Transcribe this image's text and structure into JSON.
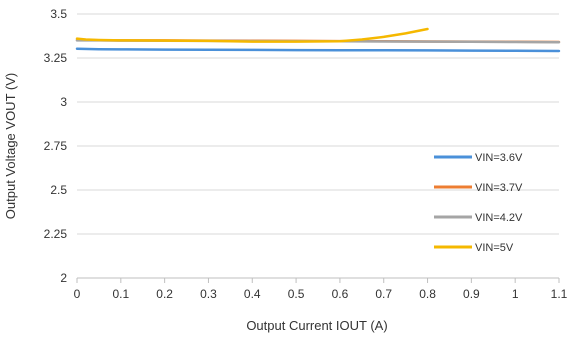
{
  "chart_data": {
    "type": "line",
    "title": "",
    "xlabel": "Output Current IOUT (A)",
    "ylabel": "Output Voltage VOUT (V)",
    "xlim": [
      0,
      1.1
    ],
    "ylim": [
      2,
      3.5
    ],
    "xticks": [
      0,
      0.1,
      0.2,
      0.3,
      0.4,
      0.5,
      0.6,
      0.7,
      0.8,
      0.9,
      1,
      1.1
    ],
    "xtick_labels": [
      "0",
      "0.1",
      "0.2",
      "0.3",
      "0.4",
      "0.5",
      "0.6",
      "0.7",
      "0.8",
      "0.9",
      "1",
      "1.1"
    ],
    "yticks": [
      2,
      2.25,
      2.5,
      2.75,
      3,
      3.25,
      3.5
    ],
    "ytick_labels": [
      "2",
      "2.25",
      "2.5",
      "2.75",
      "3",
      "3.25",
      "3.5"
    ],
    "grid": "horizontal",
    "legend_position": "bottom-right",
    "series": [
      {
        "name": "VIN=3.6V",
        "color": "#4a90d9",
        "x": [
          0,
          0.05,
          0.1,
          0.2,
          0.3,
          0.4,
          0.5,
          0.6,
          0.7,
          0.8,
          0.9,
          1.0,
          1.1
        ],
        "y": [
          3.303,
          3.3,
          3.299,
          3.298,
          3.297,
          3.296,
          3.295,
          3.294,
          3.294,
          3.293,
          3.292,
          3.291,
          3.29
        ]
      },
      {
        "name": "VIN=3.7V",
        "color": "#ed7d31",
        "x": [
          0,
          0.05,
          0.1,
          0.2,
          0.3,
          0.4,
          0.5,
          0.6,
          0.7,
          0.8,
          0.9,
          1.0,
          1.1
        ],
        "y": [
          3.352,
          3.351,
          3.35,
          3.35,
          3.349,
          3.348,
          3.347,
          3.346,
          3.345,
          3.344,
          3.343,
          3.342,
          3.341
        ]
      },
      {
        "name": "VIN=4.2V",
        "color": "#a5a5a5",
        "x": [
          0,
          0.05,
          0.1,
          0.2,
          0.3,
          0.4,
          0.5,
          0.6,
          0.7,
          0.8,
          0.9,
          1.0,
          1.1
        ],
        "y": [
          3.35,
          3.35,
          3.349,
          3.348,
          3.347,
          3.346,
          3.345,
          3.345,
          3.344,
          3.343,
          3.342,
          3.341,
          3.34
        ]
      },
      {
        "name": "VIN=5V",
        "color": "#f5b800",
        "x": [
          0,
          0.02,
          0.05,
          0.1,
          0.2,
          0.3,
          0.4,
          0.5,
          0.6,
          0.65,
          0.7,
          0.75,
          0.8
        ],
        "y": [
          3.36,
          3.355,
          3.352,
          3.35,
          3.349,
          3.347,
          3.343,
          3.343,
          3.345,
          3.355,
          3.37,
          3.39,
          3.415
        ]
      }
    ]
  }
}
